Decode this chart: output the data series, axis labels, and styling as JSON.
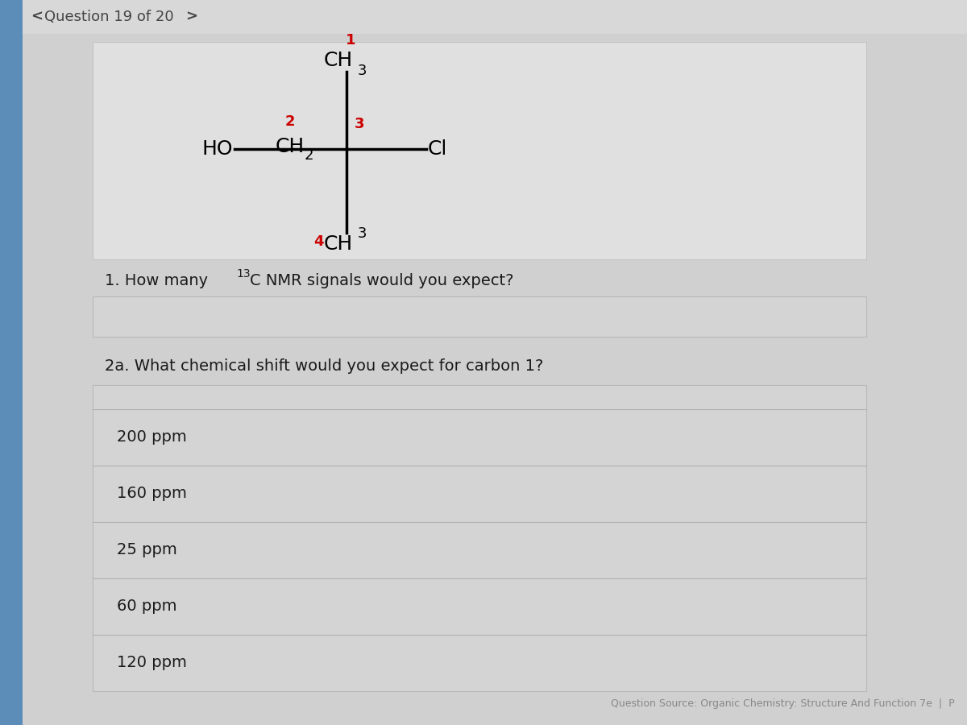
{
  "bg_color": "#c8c8c8",
  "header_bg": "#d8d8d8",
  "content_bg": "#d0d0d0",
  "mol_card_bg": "#e0e0e0",
  "input_box_bg": "#d4d4d4",
  "options_box_bg": "#d4d4d4",
  "sidebar_color": "#5b8db8",
  "header_text": "Question 19 of 20",
  "nav_left": "<",
  "nav_right": ">",
  "red_color": "#cc0000",
  "black_color": "#1a1a1a",
  "dark_gray": "#444444",
  "mid_gray": "#888888",
  "answer_options": [
    "200 ppm",
    "160 ppm",
    "25 ppm",
    "60 ppm",
    "120 ppm"
  ],
  "source_text": "Question Source: Organic Chemistry: Structure And Function 7e  |  P",
  "divider_color": "#b0b0b0",
  "border_color": "#b8b8b8"
}
